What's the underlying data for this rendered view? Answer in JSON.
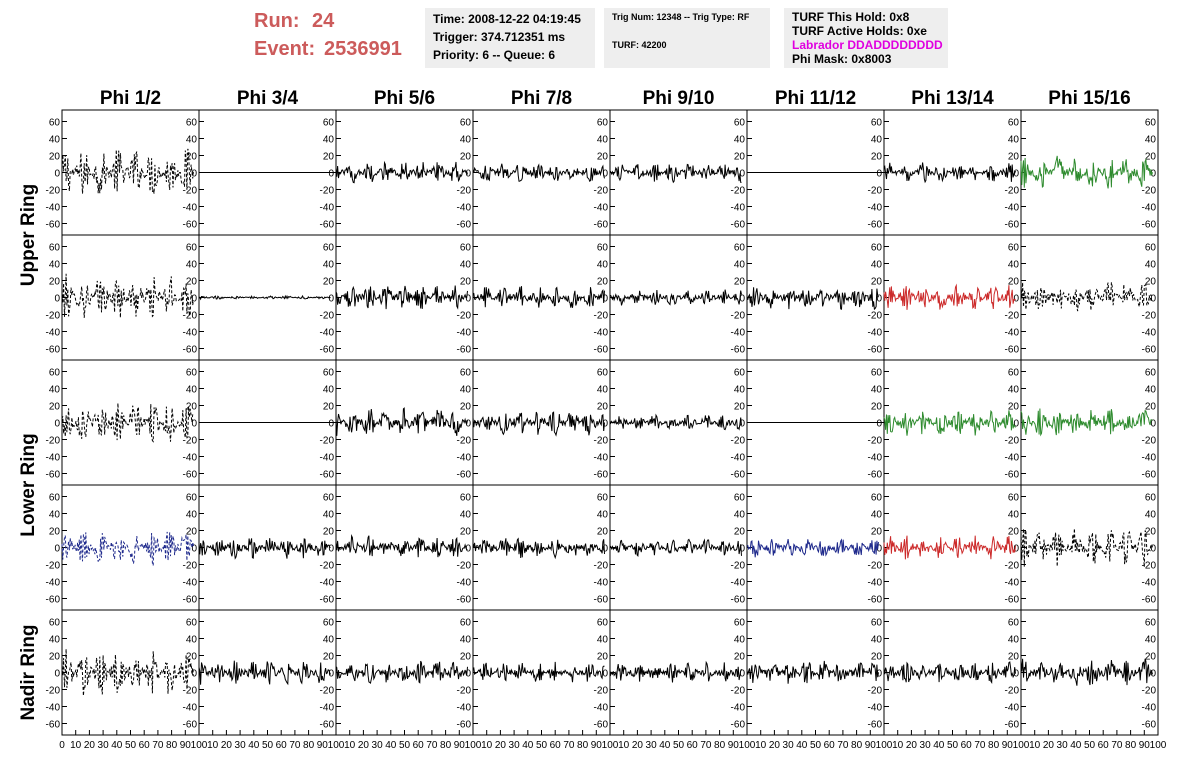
{
  "header": {
    "run_label": "Run:",
    "run_value": "24",
    "event_label": "Event:",
    "event_value": "2536991",
    "time_line": "Time: 2008-12-22 04:19:45",
    "trigger_line": "Trigger: 374.712351 ms",
    "priority_line": "Priority: 6 -- Queue: 6",
    "trig_line": "Trig Num: 12348 -- Trig Type: RF",
    "turf_line": "TURF: 42200",
    "turf_hold_line": "TURF This Hold: 0x8",
    "turf_active_line": "TURF Active Holds: 0xe",
    "labrador_line": "Labrador DDADDDDDDDD",
    "phi_mask_line": "Phi Mask: 0x8003",
    "labrador_color": "#e000e0",
    "run_color": "#cc5b5b"
  },
  "chart_data": {
    "type": "line",
    "title": "",
    "columns": [
      "Phi 1/2",
      "Phi 3/4",
      "Phi 5/6",
      "Phi 7/8",
      "Phi 9/10",
      "Phi 11/12",
      "Phi 13/14",
      "Phi 15/16"
    ],
    "row_labels": [
      "Upper Ring",
      "Lower Ring",
      "Nadir Ring"
    ],
    "xlim": [
      0,
      100
    ],
    "ylim": [
      -70,
      70
    ],
    "x_ticks": [
      0,
      10,
      20,
      30,
      40,
      50,
      60,
      70,
      80,
      90,
      100
    ],
    "x_tick_labels": [
      "0",
      "10",
      "20",
      "30",
      "40",
      "50",
      "60",
      "70",
      "80",
      "90",
      "100"
    ],
    "y_ticks": [
      -60,
      -40,
      -20,
      0,
      20,
      40,
      60
    ],
    "y_tick_labels": [
      "-60",
      "-40",
      "-20",
      "0",
      "20",
      "40",
      "60"
    ],
    "grid": false,
    "colors": {
      "black": "#000000",
      "green": "#2e8b2e",
      "red": "#cc2a2a",
      "blue": "#1f2a8c"
    },
    "panels": [
      [
        {
          "color": "black",
          "style": "dashed",
          "amp": 30
        },
        {
          "color": "black",
          "style": "flat",
          "amp": 0
        },
        {
          "color": "black",
          "style": "solid",
          "amp": 14
        },
        {
          "color": "black",
          "style": "solid",
          "amp": 12
        },
        {
          "color": "black",
          "style": "solid",
          "amp": 12
        },
        {
          "color": "black",
          "style": "flat",
          "amp": 0
        },
        {
          "color": "black",
          "style": "solid",
          "amp": 12
        },
        {
          "color": "green",
          "style": "solid",
          "amp": 20
        }
      ],
      [
        {
          "color": "black",
          "style": "dashed",
          "amp": 28
        },
        {
          "color": "black",
          "style": "solid",
          "amp": 2
        },
        {
          "color": "black",
          "style": "solid",
          "amp": 16
        },
        {
          "color": "black",
          "style": "solid",
          "amp": 14
        },
        {
          "color": "black",
          "style": "solid",
          "amp": 10
        },
        {
          "color": "black",
          "style": "solid",
          "amp": 14
        },
        {
          "color": "red",
          "style": "solid",
          "amp": 16
        },
        {
          "color": "black",
          "style": "dashed",
          "amp": 20
        }
      ],
      [
        {
          "color": "black",
          "style": "dashed",
          "amp": 26
        },
        {
          "color": "black",
          "style": "flat",
          "amp": 0
        },
        {
          "color": "black",
          "style": "solid",
          "amp": 18
        },
        {
          "color": "black",
          "style": "solid",
          "amp": 16
        },
        {
          "color": "black",
          "style": "solid",
          "amp": 10
        },
        {
          "color": "black",
          "style": "flat",
          "amp": 0
        },
        {
          "color": "green",
          "style": "solid",
          "amp": 16
        },
        {
          "color": "green",
          "style": "solid",
          "amp": 18
        }
      ],
      [
        {
          "color": "blue",
          "style": "dashed",
          "amp": 22
        },
        {
          "color": "black",
          "style": "solid",
          "amp": 14
        },
        {
          "color": "black",
          "style": "solid",
          "amp": 14
        },
        {
          "color": "black",
          "style": "solid",
          "amp": 13
        },
        {
          "color": "black",
          "style": "solid",
          "amp": 10
        },
        {
          "color": "blue",
          "style": "solid",
          "amp": 12
        },
        {
          "color": "red",
          "style": "solid",
          "amp": 15
        },
        {
          "color": "black",
          "style": "dashed",
          "amp": 24
        }
      ],
      [
        {
          "color": "black",
          "style": "dashed",
          "amp": 28
        },
        {
          "color": "black",
          "style": "solid",
          "amp": 15
        },
        {
          "color": "black",
          "style": "solid",
          "amp": 14
        },
        {
          "color": "black",
          "style": "solid",
          "amp": 13
        },
        {
          "color": "black",
          "style": "solid",
          "amp": 12
        },
        {
          "color": "black",
          "style": "solid",
          "amp": 15
        },
        {
          "color": "black",
          "style": "solid",
          "amp": 13
        },
        {
          "color": "black",
          "style": "solid",
          "amp": 18
        }
      ]
    ]
  }
}
